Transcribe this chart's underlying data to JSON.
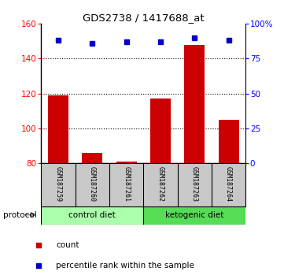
{
  "title": "GDS2738 / 1417688_at",
  "samples": [
    "GSM187259",
    "GSM187260",
    "GSM187261",
    "GSM187262",
    "GSM187263",
    "GSM187264"
  ],
  "bar_values": [
    119,
    86,
    81,
    117,
    148,
    105
  ],
  "percentile_values": [
    88,
    86,
    87,
    87,
    90,
    88
  ],
  "bar_color": "#cc0000",
  "point_color": "#0000cc",
  "ylim_left": [
    80,
    160
  ],
  "ylim_right": [
    0,
    100
  ],
  "yticks_left": [
    80,
    100,
    120,
    140,
    160
  ],
  "yticks_right": [
    0,
    25,
    50,
    75,
    100
  ],
  "ytick_labels_right": [
    "0",
    "25",
    "50",
    "75",
    "100%"
  ],
  "protocol_groups": [
    {
      "label": "control diet",
      "samples": [
        0,
        1,
        2
      ],
      "color": "#aaffaa"
    },
    {
      "label": "ketogenic diet",
      "samples": [
        3,
        4,
        5
      ],
      "color": "#55dd55"
    }
  ],
  "protocol_label": "protocol",
  "legend_items": [
    {
      "label": "count",
      "color": "#cc0000"
    },
    {
      "label": "percentile rank within the sample",
      "color": "#0000cc"
    }
  ],
  "bar_width": 0.6,
  "label_area_color": "#c8c8c8"
}
